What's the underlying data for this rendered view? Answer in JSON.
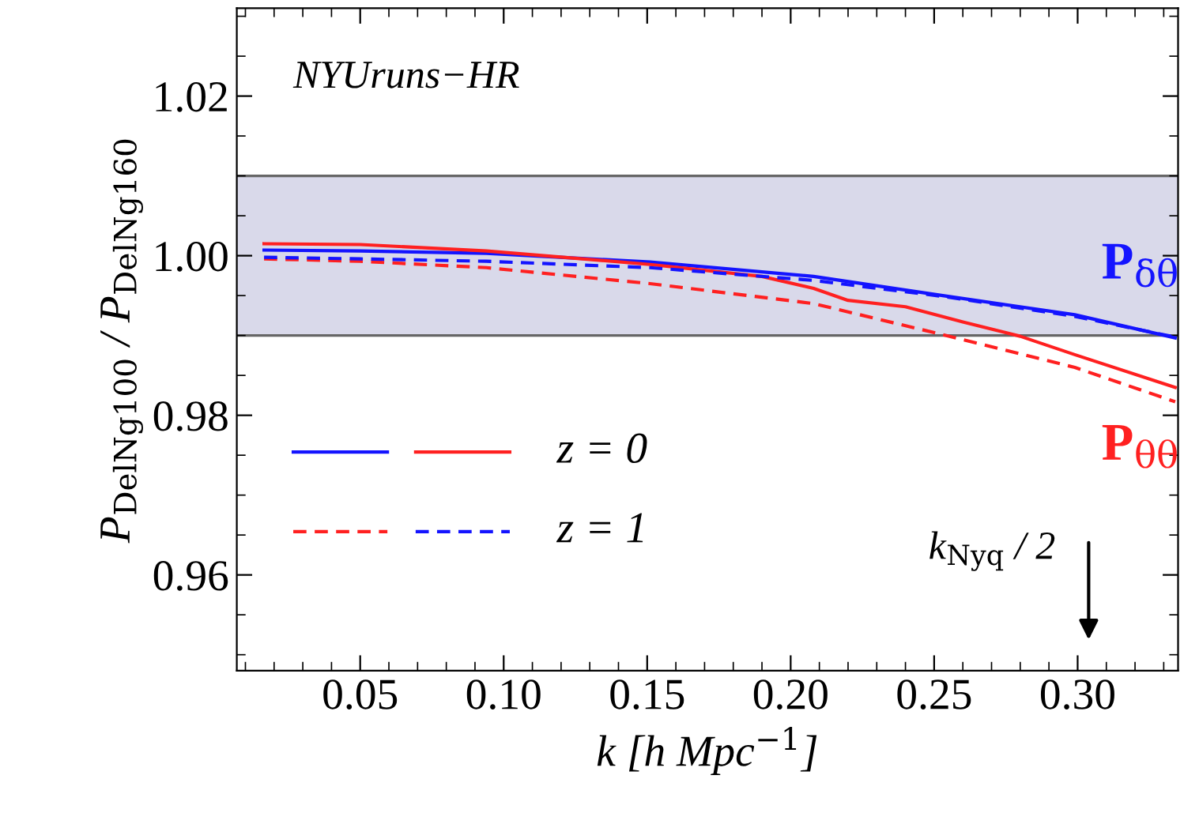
{
  "chart_data": {
    "type": "line",
    "xlabel": "k [h Mpc$^{−1}$]",
    "ylabel": "P$_{DelNg100}$ / P$_{DelNg160}$",
    "xlim": [
      0.007,
      0.335
    ],
    "ylim": [
      0.948,
      1.031
    ],
    "xticks": [
      {
        "value": 0.05,
        "label": "0.05"
      },
      {
        "value": 0.1,
        "label": "0.10"
      },
      {
        "value": 0.15,
        "label": "0.15"
      },
      {
        "value": 0.2,
        "label": "0.20"
      },
      {
        "value": 0.25,
        "label": "0.25"
      },
      {
        "value": 0.3,
        "label": "0.30"
      }
    ],
    "yticks": [
      0.96,
      0.98,
      {
        "value": 1.0,
        "label": "1.00"
      },
      1.02
    ],
    "x": [
      0.0165,
      0.05,
      0.094,
      0.151,
      0.19,
      0.208,
      0.22,
      0.24,
      0.253,
      0.26,
      0.28,
      0.299,
      0.334
    ],
    "series": [
      {
        "name": "P$_{δθ}$",
        "color": "#1414ff",
        "line_style": "solid",
        "values": [
          1.0007,
          1.0006,
          1.0003,
          0.9992,
          null,
          0.9974,
          null,
          null,
          0.995,
          null,
          null,
          0.9926,
          0.9897
        ]
      },
      {
        "name": "P$_{θθ}$",
        "color": "#ff2020",
        "line_style": "solid",
        "values": [
          1.0015,
          1.0014,
          1.0006,
          0.9989,
          0.9974,
          0.9959,
          0.9944,
          0.9936,
          null,
          0.9917,
          0.9899,
          0.9876,
          0.9835
        ]
      },
      {
        "color": "#ff2020",
        "line_style": "dashed",
        "values": [
          0.9996,
          0.9993,
          0.9985,
          0.9965,
          null,
          0.994,
          null,
          null,
          0.9901,
          null,
          null,
          0.986,
          0.9817
        ]
      },
      {
        "color": "#1414ff",
        "line_style": "dashed",
        "values": [
          0.9998,
          0.9996,
          0.9993,
          0.9985,
          null,
          0.9969,
          null,
          null,
          0.9949,
          null,
          null,
          0.9924,
          0.9898
        ]
      }
    ],
    "bands": [
      {
        "axis": "y",
        "from": 0.99,
        "to": 1.01,
        "color": "#d9d9ea"
      }
    ],
    "ref_lines": [
      {
        "axis": "y",
        "value": 0.99,
        "color": "#666666"
      },
      {
        "axis": "y",
        "value": 1.01,
        "color": "#666666"
      }
    ],
    "annotations": [
      "NYUruns−HR",
      "z = 0",
      "z = 1",
      "k$_{Nyq}$ / 2"
    ],
    "grid": false,
    "marker": "none"
  }
}
